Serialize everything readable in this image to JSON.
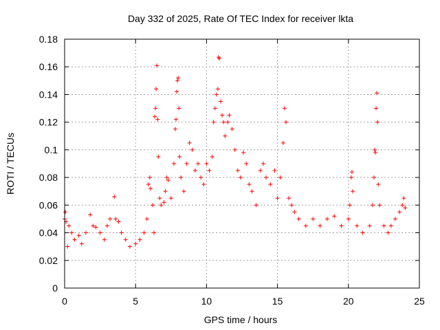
{
  "chart_data": {
    "type": "scatter",
    "title": "Day 332 of 2025, Rate Of TEC Index for receiver lkta",
    "xlabel": "GPS time / hours",
    "ylabel": "ROTI / TECUs",
    "xlim": [
      0,
      25
    ],
    "ylim": [
      0,
      0.18
    ],
    "xticks": [
      0,
      5,
      10,
      15,
      20,
      25
    ],
    "yticks": [
      0,
      0.02,
      0.04,
      0.06,
      0.08,
      0.1,
      0.12,
      0.14,
      0.16,
      0.18
    ],
    "grid": true,
    "marker": "plus",
    "color": "#ff0000",
    "series": [
      {
        "points": [
          [
            0.0,
            0.05
          ],
          [
            0.05,
            0.055
          ],
          [
            0.1,
            0.048
          ],
          [
            0.2,
            0.03
          ],
          [
            0.3,
            0.045
          ],
          [
            0.5,
            0.04
          ],
          [
            0.7,
            0.035
          ],
          [
            1.0,
            0.038
          ],
          [
            1.2,
            0.032
          ],
          [
            1.5,
            0.04
          ],
          [
            1.8,
            0.053
          ],
          [
            2.0,
            0.045
          ],
          [
            2.2,
            0.044
          ],
          [
            2.5,
            0.04
          ],
          [
            2.8,
            0.035
          ],
          [
            3.0,
            0.045
          ],
          [
            3.2,
            0.05
          ],
          [
            3.5,
            0.066
          ],
          [
            3.6,
            0.05
          ],
          [
            3.8,
            0.048
          ],
          [
            4.0,
            0.04
          ],
          [
            4.3,
            0.035
          ],
          [
            4.6,
            0.03
          ],
          [
            5.0,
            0.032
          ],
          [
            5.3,
            0.035
          ],
          [
            5.6,
            0.04
          ],
          [
            5.8,
            0.05
          ],
          [
            5.9,
            0.075
          ],
          [
            6.0,
            0.08
          ],
          [
            6.05,
            0.072
          ],
          [
            6.2,
            0.06
          ],
          [
            6.3,
            0.04
          ],
          [
            6.35,
            0.124
          ],
          [
            6.4,
            0.13
          ],
          [
            6.45,
            0.144
          ],
          [
            6.5,
            0.161
          ],
          [
            6.55,
            0.122
          ],
          [
            6.6,
            0.095
          ],
          [
            6.7,
            0.065
          ],
          [
            6.8,
            0.06
          ],
          [
            7.0,
            0.062
          ],
          [
            7.1,
            0.07
          ],
          [
            7.2,
            0.08
          ],
          [
            7.3,
            0.078
          ],
          [
            7.5,
            0.065
          ],
          [
            7.7,
            0.09
          ],
          [
            7.8,
            0.115
          ],
          [
            7.85,
            0.122
          ],
          [
            7.9,
            0.142
          ],
          [
            7.95,
            0.15
          ],
          [
            8.0,
            0.152
          ],
          [
            8.05,
            0.13
          ],
          [
            8.1,
            0.095
          ],
          [
            8.2,
            0.08
          ],
          [
            8.4,
            0.07
          ],
          [
            8.6,
            0.09
          ],
          [
            8.8,
            0.105
          ],
          [
            9.0,
            0.1
          ],
          [
            9.2,
            0.085
          ],
          [
            9.4,
            0.09
          ],
          [
            9.6,
            0.08
          ],
          [
            9.8,
            0.075
          ],
          [
            10.0,
            0.09
          ],
          [
            10.2,
            0.085
          ],
          [
            10.4,
            0.095
          ],
          [
            10.5,
            0.12
          ],
          [
            10.6,
            0.13
          ],
          [
            10.7,
            0.14
          ],
          [
            10.8,
            0.144
          ],
          [
            10.85,
            0.167
          ],
          [
            10.9,
            0.166
          ],
          [
            11.0,
            0.135
          ],
          [
            11.1,
            0.125
          ],
          [
            11.2,
            0.12
          ],
          [
            11.3,
            0.11
          ],
          [
            11.5,
            0.12
          ],
          [
            11.6,
            0.125
          ],
          [
            11.8,
            0.115
          ],
          [
            12.0,
            0.1
          ],
          [
            12.2,
            0.085
          ],
          [
            12.4,
            0.08
          ],
          [
            12.6,
            0.098
          ],
          [
            12.8,
            0.09
          ],
          [
            13.0,
            0.075
          ],
          [
            13.2,
            0.07
          ],
          [
            13.5,
            0.06
          ],
          [
            13.8,
            0.085
          ],
          [
            14.0,
            0.09
          ],
          [
            14.2,
            0.08
          ],
          [
            14.5,
            0.075
          ],
          [
            14.8,
            0.085
          ],
          [
            15.0,
            0.065
          ],
          [
            15.2,
            0.08
          ],
          [
            15.4,
            0.105
          ],
          [
            15.5,
            0.13
          ],
          [
            15.6,
            0.12
          ],
          [
            15.8,
            0.065
          ],
          [
            16.0,
            0.06
          ],
          [
            16.2,
            0.055
          ],
          [
            16.5,
            0.05
          ],
          [
            17.0,
            0.045
          ],
          [
            17.5,
            0.05
          ],
          [
            18.0,
            0.045
          ],
          [
            18.5,
            0.05
          ],
          [
            19.0,
            0.052
          ],
          [
            19.5,
            0.045
          ],
          [
            20.0,
            0.05
          ],
          [
            20.1,
            0.06
          ],
          [
            20.2,
            0.08
          ],
          [
            20.25,
            0.084
          ],
          [
            20.3,
            0.07
          ],
          [
            20.6,
            0.045
          ],
          [
            21.0,
            0.04
          ],
          [
            21.5,
            0.045
          ],
          [
            21.7,
            0.06
          ],
          [
            21.8,
            0.08
          ],
          [
            21.85,
            0.1
          ],
          [
            21.9,
            0.098
          ],
          [
            21.95,
            0.13
          ],
          [
            22.0,
            0.141
          ],
          [
            22.05,
            0.12
          ],
          [
            22.1,
            0.075
          ],
          [
            22.2,
            0.06
          ],
          [
            22.5,
            0.045
          ],
          [
            22.8,
            0.04
          ],
          [
            23.0,
            0.045
          ],
          [
            23.3,
            0.05
          ],
          [
            23.6,
            0.055
          ],
          [
            23.8,
            0.06
          ],
          [
            23.9,
            0.065
          ],
          [
            24.0,
            0.058
          ]
        ]
      }
    ]
  }
}
